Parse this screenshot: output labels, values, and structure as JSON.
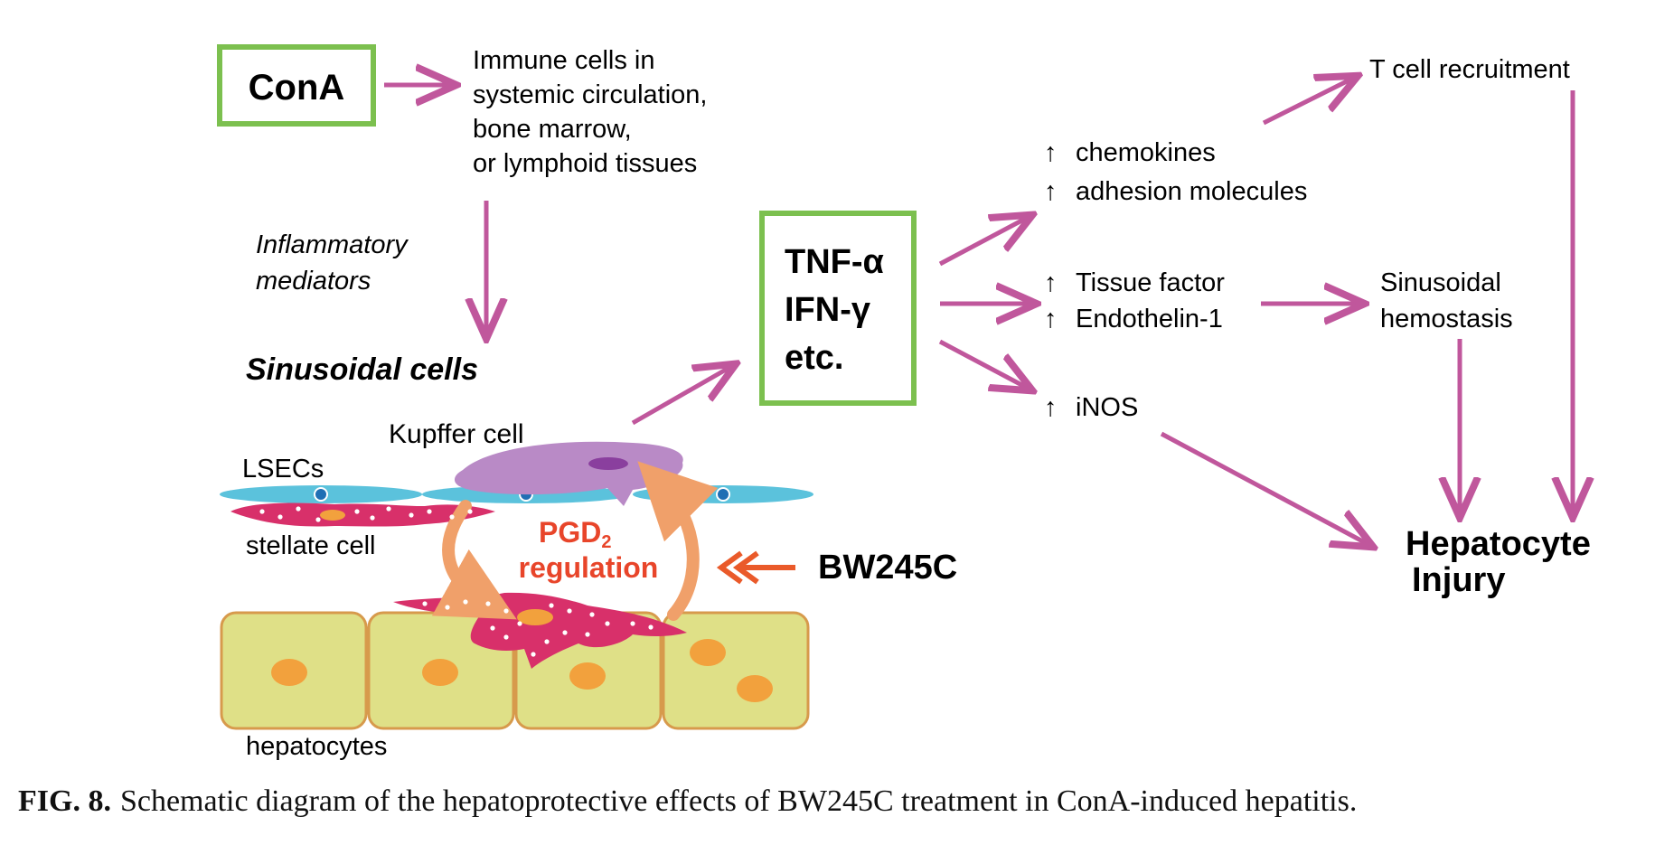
{
  "boxes": {
    "cona": "ConA",
    "cytokine_lines": [
      "TNF-α",
      "IFN-γ",
      "etc."
    ]
  },
  "labels": {
    "immune_cells_lines": [
      "Immune cells in",
      "systemic circulation,",
      "bone marrow,",
      "or lymphoid tissues"
    ],
    "inflammatory_lines": [
      "Inflammatory",
      "mediators"
    ],
    "sinusoidal_cells": "Sinusoidal cells",
    "kupffer_cell": "Kupffer cell",
    "lsecs": "LSECs",
    "stellate_cell": "stellate cell",
    "hepatocytes": "hepatocytes",
    "pgd2_main": "PGD",
    "pgd2_sub": "2",
    "regulation": "regulation",
    "bw245c": "BW245C",
    "chemokines": "chemokines",
    "adhesion_molecules": "adhesion molecules",
    "tissue_factor": "Tissue factor",
    "endothelin": "Endothelin-1",
    "inos": "iNOS",
    "up_arrow_symbol": "↑",
    "t_cell_recruitment": "T cell recruitment",
    "sinusoidal_hemostasis_lines": [
      "Sinusoidal",
      "hemostasis"
    ],
    "hepatocyte_injury_lines": [
      "Hepatocyte",
      "Injury"
    ]
  },
  "caption": {
    "label": "FIG. 8.",
    "text": "Schematic diagram of the hepatoprotective effects of BW245C treatment in ConA-induced hepatitis."
  },
  "colors": {
    "box_border": "#7cc04f",
    "arrow": "#c0579c",
    "pgd2_text": "#e8452a",
    "orange_arrow": "#f0a06a",
    "bw_arrow": "#ea5a2a",
    "lsec": "#5bc2dc",
    "stellate": "#d8306a",
    "kupffer": "#b98ac6",
    "hepatocyte_fill": "#dfe087",
    "hepatocyte_border": "#d79a4c",
    "nucleus": "#f2a13d"
  }
}
